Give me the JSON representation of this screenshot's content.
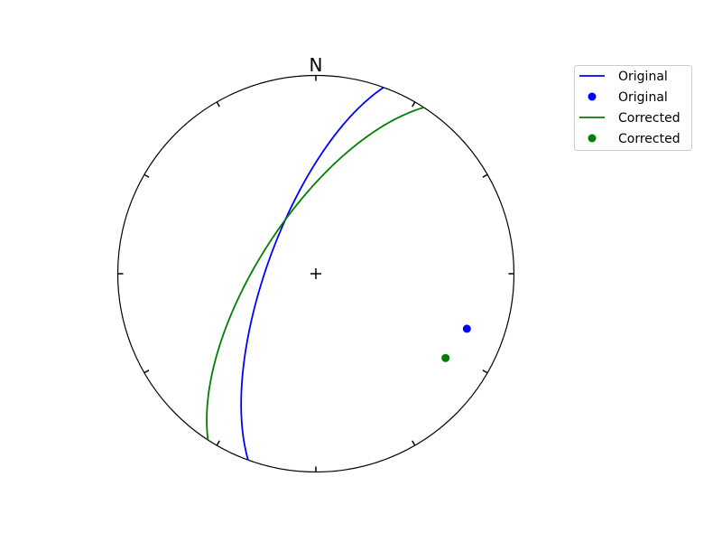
{
  "chart_data": {
    "type": "stereonet",
    "north_label": "N",
    "tick_interval_deg": 30,
    "legend_placement": "top-right",
    "series": [
      {
        "name": "Original",
        "kind": "plane",
        "strike": 200,
        "dip": 70,
        "color": "#0000ff"
      },
      {
        "name": "Original",
        "kind": "pole",
        "trend": 110,
        "plunge": 20,
        "color": "#0000ff"
      },
      {
        "name": "Corrected",
        "kind": "plane",
        "strike": 213,
        "dip": 67,
        "color": "#008000"
      },
      {
        "name": "Corrected",
        "kind": "pole",
        "trend": 123,
        "plunge": 23,
        "color": "#008000"
      }
    ]
  }
}
